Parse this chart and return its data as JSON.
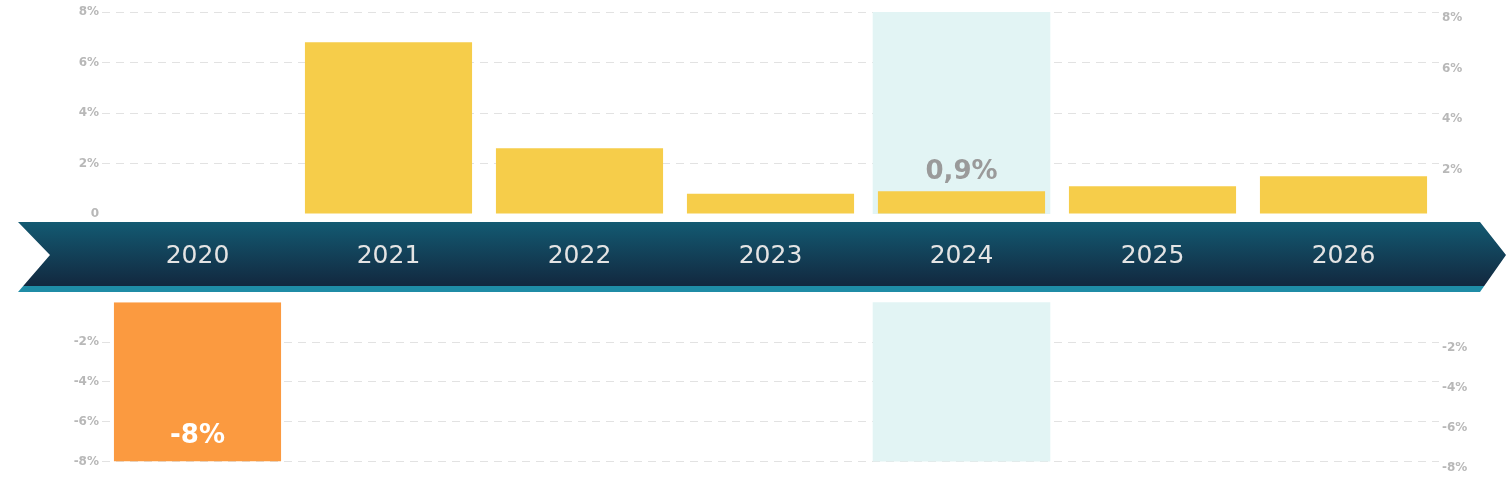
{
  "chart_data": [
    {
      "type": "bar",
      "categories": [
        "2020",
        "2021",
        "2022",
        "2023",
        "2024",
        "2025",
        "2026"
      ],
      "values": [
        null,
        6.8,
        2.6,
        0.8,
        0.9,
        1.1,
        1.5
      ],
      "colors": [
        "#f6cd4a",
        "#f6cd4a",
        "#f6cd4a",
        "#f6cd4a",
        "#f6cd4a",
        "#f6cd4a",
        "#f6cd4a"
      ],
      "value_labels": [
        null,
        null,
        null,
        null,
        "0,9%",
        null,
        null
      ],
      "ylim": [
        0,
        8
      ],
      "yticks": [
        0,
        {
          "value": 2,
          "label": "2%"
        },
        {
          "value": 4,
          "label": "4%"
        },
        {
          "value": 6,
          "label": "6%"
        },
        {
          "value": 8,
          "label": "8%"
        }
      ],
      "y2lim": [
        0,
        8
      ],
      "y2ticks": [
        {
          "value": 2,
          "label": "2%"
        },
        {
          "value": 4,
          "label": "4%"
        },
        {
          "value": 6,
          "label": "6%"
        },
        {
          "value": 8,
          "label": "8%"
        }
      ],
      "bands": [
        {
          "axis": "x",
          "from": "2024",
          "to": "2024",
          "color": "#e2f4f4"
        }
      ],
      "grid": "y",
      "legend": false
    },
    {
      "type": "bar",
      "categories": [
        "2020",
        "2021",
        "2022",
        "2023",
        "2024",
        "2025",
        "2026"
      ],
      "values": [
        -8,
        null,
        null,
        null,
        null,
        null,
        null
      ],
      "colors": [
        "#fb9a40",
        "#f6cd4a",
        "#f6cd4a",
        "#f6cd4a",
        "#f6cd4a",
        "#f6cd4a",
        "#f6cd4a"
      ],
      "value_labels": [
        "-8%",
        null,
        null,
        null,
        null,
        null,
        null
      ],
      "ylim": [
        -8,
        0
      ],
      "yticks": [
        {
          "value": -8,
          "label": "-8%"
        },
        {
          "value": -6,
          "label": "-6%"
        },
        {
          "value": -4,
          "label": "-4%"
        },
        {
          "value": -2,
          "label": "-2%"
        }
      ],
      "y2lim": [
        -8,
        0
      ],
      "y2ticks": [
        {
          "value": -8,
          "label": "-8%"
        },
        {
          "value": -6,
          "label": "-6%"
        },
        {
          "value": -4,
          "label": "-4%"
        },
        {
          "value": -2,
          "label": "-2%"
        }
      ],
      "bands": [
        {
          "axis": "x",
          "from": "2024",
          "to": "2024",
          "color": "#e2f4f4"
        }
      ],
      "grid": "y",
      "tick_labels": "y",
      "legend": false
    }
  ]
}
